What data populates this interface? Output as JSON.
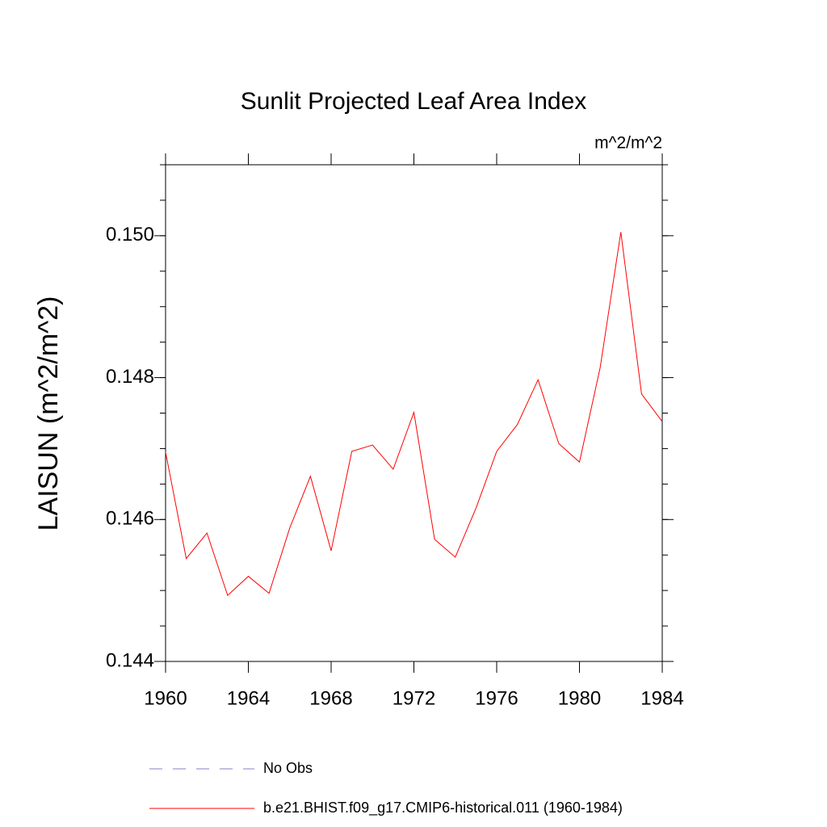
{
  "chart_data": {
    "type": "line",
    "title": "Sunlit Projected Leaf Area Index",
    "units": "m^2/m^2",
    "y_label": "LAISUN  (m^2/m^2)",
    "x": [
      1960,
      1961,
      1962,
      1963,
      1964,
      1965,
      1966,
      1967,
      1968,
      1969,
      1970,
      1971,
      1972,
      1973,
      1974,
      1975,
      1976,
      1977,
      1978,
      1979,
      1980,
      1981,
      1982,
      1983,
      1984
    ],
    "series": [
      {
        "name": "b.e21.BHIST.f09_g17.CMIP6-historical.011 (1960-1984)",
        "color": "#ff0000",
        "values": [
          0.14695,
          0.14545,
          0.14581,
          0.14493,
          0.1452,
          0.14496,
          0.14588,
          0.14661,
          0.14556,
          0.14696,
          0.14705,
          0.14671,
          0.14751,
          0.14572,
          0.14547,
          0.14616,
          0.14696,
          0.14734,
          0.14797,
          0.14707,
          0.14681,
          0.14814,
          0.15005,
          0.14777,
          0.14738
        ]
      }
    ],
    "legend_extra": [
      {
        "name": "No Obs",
        "color": "#8080c8",
        "style": "dashed"
      }
    ],
    "xlim": [
      1960,
      1984
    ],
    "xticks": [
      1960,
      1964,
      1968,
      1972,
      1976,
      1980,
      1984
    ],
    "ylim": [
      0.144,
      0.151
    ],
    "yticks": [
      0.144,
      0.146,
      0.148,
      {
        "value": 0.15,
        "label": "0.150"
      }
    ]
  }
}
